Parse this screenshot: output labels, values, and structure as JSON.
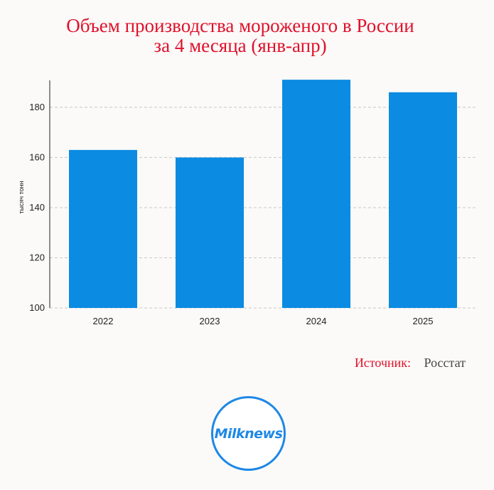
{
  "title_line1": "Объем производства мороженого в России",
  "title_line2": "за 4 месяца (янв-апр)",
  "source_label": "Источник:",
  "source_value": "Росстат",
  "logo_text": "Milknews",
  "colors": {
    "bar": "#0b8be2",
    "title": "#e0112b",
    "grid": "#c8c8c8"
  },
  "chart_data": {
    "type": "bar",
    "title": "Объем производства мороженого в России за 4 месяца (янв-апр)",
    "categories": [
      "2022",
      "2023",
      "2024",
      "2025"
    ],
    "values": [
      163,
      160,
      191,
      186
    ],
    "xlabel": "",
    "ylabel": "тысяч тонн",
    "ylim": [
      100,
      195
    ],
    "yticks": [
      100,
      120,
      140,
      160,
      180
    ],
    "grid": true
  }
}
